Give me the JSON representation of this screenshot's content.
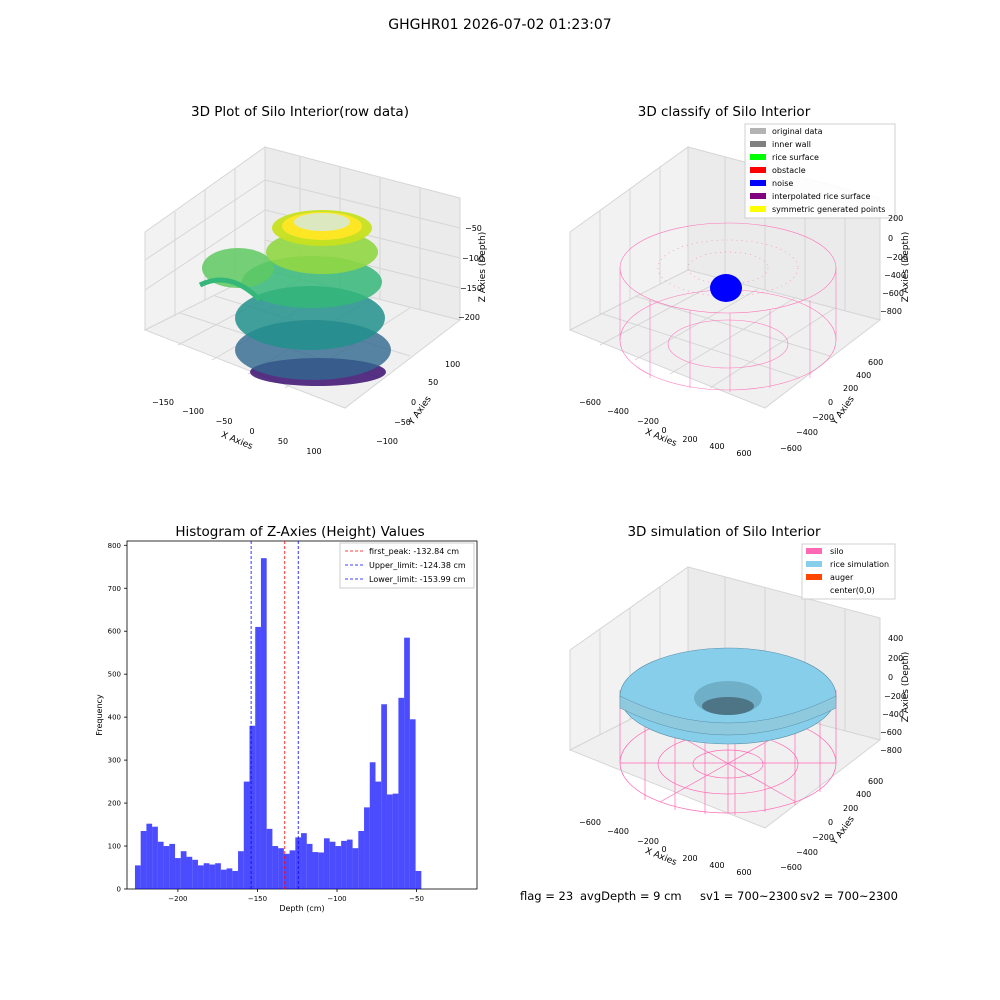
{
  "figure": {
    "suptitle": "GHGHR01 2026-07-02 01:23:07"
  },
  "panels": {
    "raw": {
      "title": "3D Plot of Silo Interior(row data)",
      "xlabel": "X Axies",
      "ylabel": "Y Axies",
      "zlabel": "Z Axies (Depth)",
      "x_ticks": [
        "−150",
        "−100",
        "−50",
        "0",
        "50",
        "100"
      ],
      "y_ticks": [
        "−100",
        "−50",
        "0",
        "50",
        "100"
      ],
      "z_ticks": [
        "−50",
        "−100",
        "−150",
        "−200"
      ],
      "colormap": "viridis"
    },
    "classify": {
      "title": "3D classify of Silo Interior",
      "xlabel": "X Axies",
      "ylabel": "Y Axies",
      "zlabel": "Z Axies (Depth)",
      "x_ticks": [
        "−600",
        "−400",
        "−200",
        "0",
        "200",
        "400",
        "600"
      ],
      "y_ticks": [
        "−600",
        "−400",
        "−200",
        "0",
        "200",
        "400",
        "600"
      ],
      "z_ticks": [
        "200",
        "0",
        "−200",
        "−400",
        "−600",
        "−800"
      ],
      "legend": [
        {
          "label": "original data",
          "color": "#b3b3b3"
        },
        {
          "label": "inner wall",
          "color": "#808080"
        },
        {
          "label": "rice surface",
          "color": "#00ff00"
        },
        {
          "label": "obstacle",
          "color": "#ff0000"
        },
        {
          "label": "noise",
          "color": "#0000ff"
        },
        {
          "label": "interpolated rice surface",
          "color": "#800080"
        },
        {
          "label": "symmetric generated points",
          "color": "#ffff00"
        }
      ]
    },
    "simulation": {
      "title": "3D simulation of Silo Interior",
      "xlabel": "X Axies",
      "ylabel": "Y Axies",
      "zlabel": "Z Axies (Depth)",
      "x_ticks": [
        "−600",
        "−400",
        "−200",
        "0",
        "200",
        "400",
        "600"
      ],
      "y_ticks": [
        "−600",
        "−400",
        "−200",
        "0",
        "200",
        "400",
        "600"
      ],
      "z_ticks": [
        "400",
        "200",
        "0",
        "−200",
        "−400",
        "−600",
        "−800"
      ],
      "legend": [
        {
          "label": "silo",
          "color": "#ff69b4"
        },
        {
          "label": "rice simulation",
          "color": "#87ceeb"
        },
        {
          "label": "auger",
          "color": "#ff4500"
        },
        {
          "label": "center(0,0)",
          "color": "#ffffff"
        }
      ]
    }
  },
  "status": {
    "flag": "flag = 23",
    "avg_depth": "avgDepth = 9 cm",
    "sv1": "sv1 = 700~2300",
    "sv2": "sv2 = 700~2300"
  },
  "chart_data": {
    "type": "bar",
    "title": "Histogram of Z-Axies (Height) Values",
    "xlabel": "Depth (cm)",
    "ylabel": "Frequency",
    "xlim": [
      -232,
      -12
    ],
    "ylim": [
      0,
      810
    ],
    "x_ticks": [
      -200,
      -150,
      -100,
      -50
    ],
    "y_ticks": [
      0,
      100,
      200,
      300,
      400,
      500,
      600,
      700,
      800
    ],
    "bar_color": "#0000ff",
    "bin_width": 3.6,
    "bin_start": -227.0,
    "values": [
      55,
      135,
      152,
      145,
      110,
      100,
      105,
      72,
      88,
      75,
      68,
      55,
      60,
      57,
      60,
      45,
      48,
      42,
      88,
      250,
      380,
      610,
      770,
      140,
      100,
      95,
      82,
      90,
      120,
      130,
      105,
      86,
      85,
      118,
      110,
      100,
      112,
      115,
      95,
      135,
      190,
      295,
      250,
      430,
      220,
      222,
      445,
      585,
      395,
      42
    ],
    "vlines": [
      {
        "label": "first_peak: -132.84 cm",
        "x": -132.84,
        "color": "#ff0000"
      },
      {
        "label": "Upper_limit: -124.38 cm",
        "x": -124.38,
        "color": "#0000ff"
      },
      {
        "label": "Lower_limit: -153.99 cm",
        "x": -153.99,
        "color": "#0000ff"
      }
    ],
    "legend_position": "top-right"
  }
}
